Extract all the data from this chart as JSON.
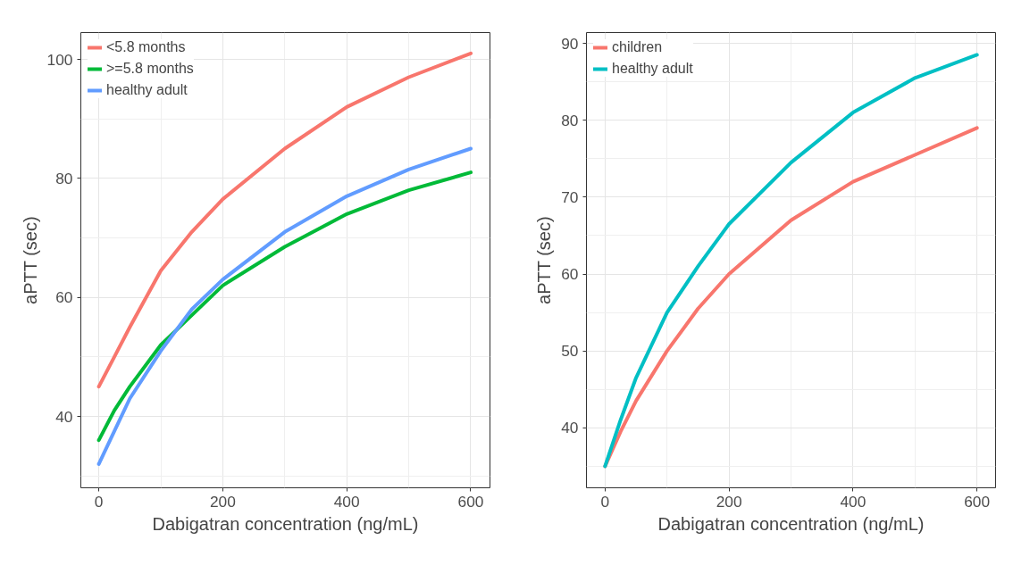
{
  "chart_data": [
    {
      "type": "line",
      "xlabel": "Dabigatran concentration (ng/mL)",
      "ylabel": "aPTT (sec)",
      "x": [
        0,
        25,
        50,
        100,
        150,
        200,
        300,
        400,
        500,
        600
      ],
      "xlim": [
        -29,
        631
      ],
      "xticks": [
        0,
        200,
        400,
        600
      ],
      "ylim": [
        28,
        104.5
      ],
      "yticks": [
        40,
        60,
        80,
        100
      ],
      "grid": true,
      "legend": "top left",
      "line_style": "solid",
      "marker": "none",
      "series": [
        {
          "name": "<5.8 months",
          "color": "#f8766d",
          "values": [
            45,
            50,
            55,
            64.5,
            71,
            76.5,
            85,
            92,
            97,
            101
          ]
        },
        {
          "name": ">=5.8 months",
          "color": "#00ba38",
          "values": [
            36,
            41,
            45,
            52,
            57,
            62,
            68.5,
            74,
            78,
            81
          ]
        },
        {
          "name": "healthy adult",
          "color": "#619cff",
          "values": [
            32,
            37.5,
            43,
            51,
            58,
            63,
            71,
            77,
            81.5,
            85
          ]
        }
      ]
    },
    {
      "type": "line",
      "xlabel": "Dabigatran concentration (ng/mL)",
      "ylabel": "aPTT (sec)",
      "x": [
        0,
        25,
        50,
        100,
        150,
        200,
        300,
        400,
        500,
        600
      ],
      "xlim": [
        -30,
        630
      ],
      "xticks": [
        0,
        200,
        400,
        600
      ],
      "ylim": [
        32.2,
        91.4
      ],
      "yticks": [
        40,
        50,
        60,
        70,
        80,
        90
      ],
      "grid": true,
      "legend": "top left",
      "line_style": "solid",
      "marker": "none",
      "series": [
        {
          "name": "children",
          "color": "#f8766d",
          "values": [
            35,
            39.5,
            43.5,
            50,
            55.5,
            60,
            67,
            72,
            75.5,
            79
          ]
        },
        {
          "name": "healthy adult",
          "color": "#00bfc4",
          "values": [
            35,
            41,
            46.5,
            55,
            61,
            66.5,
            74.5,
            81,
            85.5,
            88.5
          ]
        }
      ]
    }
  ]
}
